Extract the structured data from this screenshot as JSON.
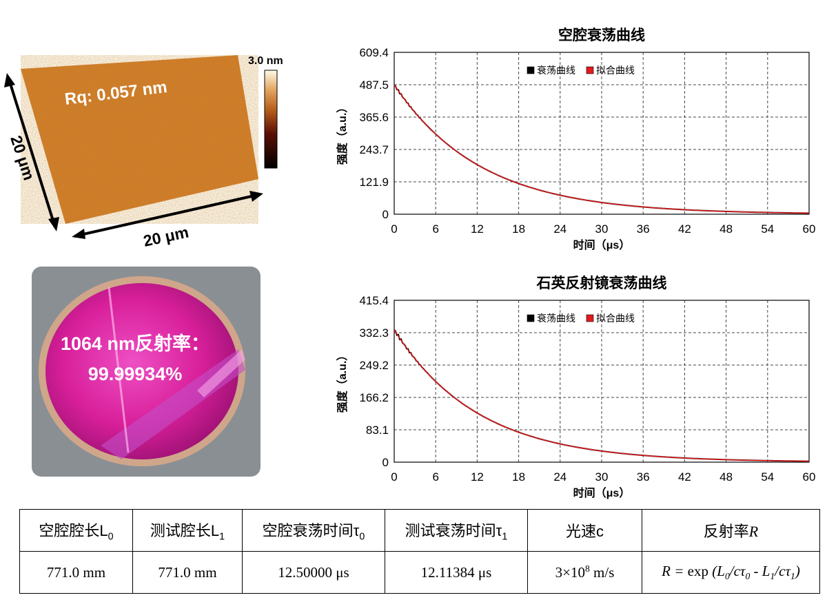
{
  "afm": {
    "rq_label": "Rq: 0.057 nm",
    "colorbar_max": "3.0 nm",
    "x_dimension": "20 μm",
    "y_dimension": "20 μm",
    "colors": {
      "surface": "#d07a2a",
      "arrow": "#000000"
    }
  },
  "mirror_photo": {
    "line1": "1064 nm反射率：",
    "line2": "99.99934%",
    "colors": {
      "coating": "#d81f9a",
      "background": "#8a8f94"
    }
  },
  "chart_data": [
    {
      "type": "line",
      "title": "空腔衰荡曲线",
      "xlabel": "时间（μs）",
      "ylabel": "强度（a.u.）",
      "xlim": [
        0,
        60
      ],
      "ylim": [
        0,
        609.4
      ],
      "x_ticks": [
        "0",
        "6",
        "12",
        "18",
        "24",
        "30",
        "36",
        "42",
        "48",
        "54",
        "60"
      ],
      "y_ticks": [
        "0",
        "121.9",
        "243.7",
        "365.6",
        "487.5",
        "609.4"
      ],
      "grid": true,
      "legend_position": "top-center",
      "series": [
        {
          "name": "衰荡曲线",
          "color": "#000000",
          "amplitude": 487.5,
          "tau": 12.5,
          "x_end": 60
        },
        {
          "name": "拟合曲线",
          "color": "#e31a1c",
          "amplitude": 487.5,
          "tau": 12.5,
          "x_end": 60
        }
      ]
    },
    {
      "type": "line",
      "title": "石英反射镜衰荡曲线",
      "xlabel": "时间（μs）",
      "ylabel": "强度（a.u.）",
      "xlim": [
        0,
        60
      ],
      "ylim": [
        0,
        415.4
      ],
      "x_ticks": [
        "0",
        "6",
        "12",
        "18",
        "24",
        "30",
        "36",
        "42",
        "48",
        "54",
        "60"
      ],
      "y_ticks": [
        "0",
        "83.1",
        "166.2",
        "249.2",
        "332.3",
        "415.4"
      ],
      "grid": true,
      "legend_position": "top-center",
      "series": [
        {
          "name": "衰荡曲线",
          "color": "#000000",
          "amplitude": 340,
          "tau": 12.11,
          "x_end": 60
        },
        {
          "name": "拟合曲线",
          "color": "#e31a1c",
          "amplitude": 340,
          "tau": 12.11,
          "x_end": 60
        }
      ]
    }
  ],
  "table": {
    "headers": [
      {
        "text": "空腔腔长L",
        "sub": "0"
      },
      {
        "text": "测试腔长L",
        "sub": "1"
      },
      {
        "text": "空腔衰荡时间τ",
        "sub": "0"
      },
      {
        "text": "测试衰荡时间τ",
        "sub": "1"
      },
      {
        "text": "光速c",
        "sub": ""
      },
      {
        "text": "反射率",
        "sub": "",
        "italic": "R"
      }
    ],
    "values": {
      "l0": "771.0 mm",
      "l1": "771.0 mm",
      "tau0": "12.50000 μs",
      "tau1": "12.11384 μs",
      "c_base": "3×10",
      "c_exp": "8",
      "c_unit": " m/s",
      "r_formula": "R = exp (L0/cτ0 - L1/cτ1)"
    }
  }
}
